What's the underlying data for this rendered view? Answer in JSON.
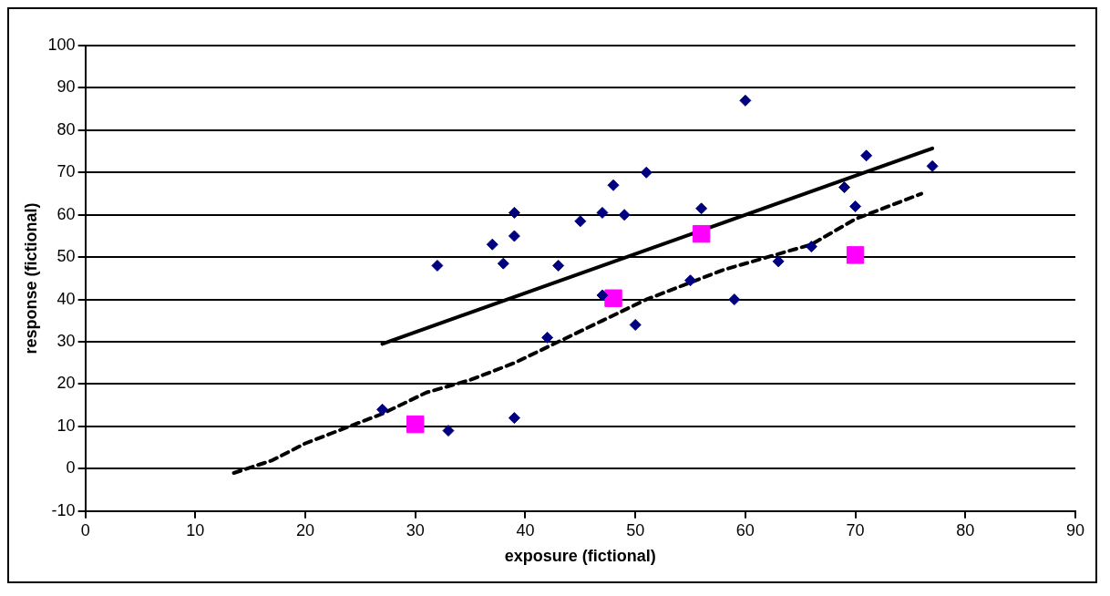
{
  "chart_data": {
    "type": "scatter",
    "xlabel": "exposure (fictional)",
    "ylabel": "response (fictional)",
    "xlim": [
      0,
      90
    ],
    "xticks": [
      0,
      10,
      20,
      30,
      40,
      50,
      60,
      70,
      80,
      90
    ],
    "ylim": [
      -10,
      100
    ],
    "yticks": [
      -10,
      0,
      10,
      20,
      30,
      40,
      50,
      60,
      70,
      80,
      90,
      100
    ],
    "grid": "y",
    "legend": false,
    "series": [
      {
        "type": "scatter",
        "marker": "diamond",
        "color": "#000080",
        "x": [
          27,
          33,
          32,
          37,
          38,
          39,
          39,
          39,
          42,
          43,
          45,
          47,
          47,
          48,
          49,
          50,
          51,
          55,
          56,
          59,
          60,
          63,
          66,
          69,
          70,
          71,
          77
        ],
        "values": [
          14,
          9,
          48,
          53,
          48.5,
          60.5,
          55,
          12,
          31,
          48,
          58.5,
          60.5,
          41,
          67,
          60,
          34,
          70,
          44.5,
          61.5,
          40,
          87,
          49,
          52.5,
          66.5,
          62,
          74,
          71.5
        ]
      },
      {
        "type": "scatter",
        "marker": "square",
        "color": "#ff00ff",
        "x": [
          30,
          48,
          56,
          70
        ],
        "values": [
          10.5,
          40.3,
          55.5,
          50.5
        ]
      },
      {
        "type": "line",
        "marker": "none",
        "line_style": "solid",
        "color": "#000000",
        "x": [
          27,
          77
        ],
        "values": [
          29.5,
          75.7
        ]
      },
      {
        "type": "line",
        "marker": "none",
        "line_style": "dashed",
        "color": "#000000",
        "x": [
          13.5,
          17,
          20,
          23,
          27,
          31,
          35,
          39,
          43,
          47,
          51,
          54,
          58,
          62,
          66,
          68,
          70,
          73,
          76
        ],
        "values": [
          -1,
          2,
          6,
          9,
          13,
          18,
          21,
          25,
          30,
          35,
          40,
          43,
          47,
          50,
          53,
          56,
          59,
          62,
          65
        ]
      }
    ]
  }
}
